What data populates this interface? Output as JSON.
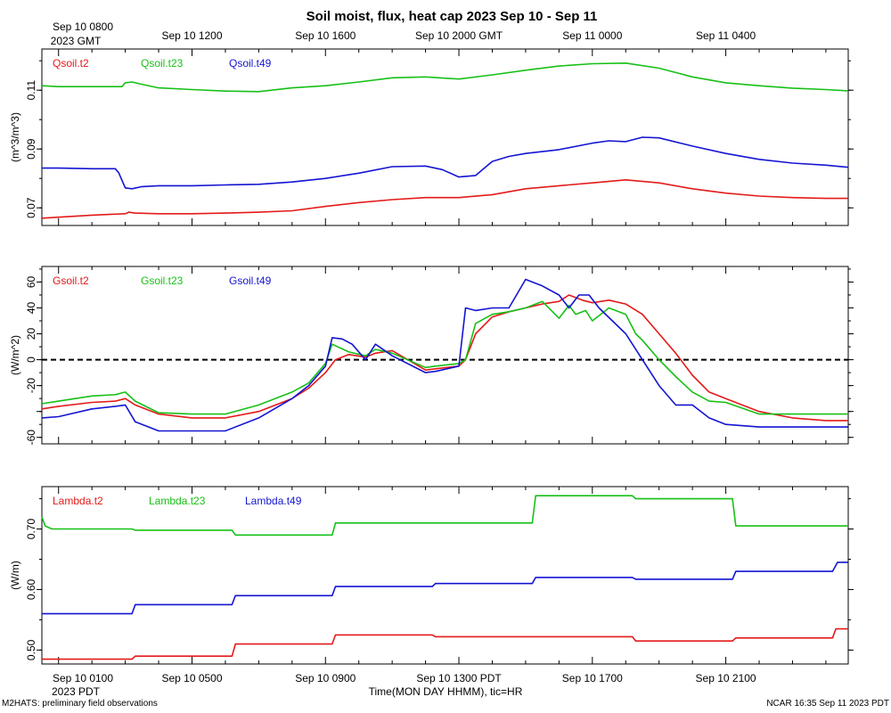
{
  "title": "Soil moist, flux, heat cap 2023 Sep 10 - Sep 11",
  "top_axis": {
    "first_label_line1": "Sep 10 0800",
    "first_label_line2": "2023 GMT",
    "labels": [
      "Sep 10 1200",
      "Sep 10 1600",
      "Sep 10 2000 GMT",
      "Sep 11 0000",
      "Sep 11 0400"
    ]
  },
  "bottom_axis": {
    "first_label_line1": "Sep 10 0100",
    "first_label_line2": "2023 PDT",
    "labels": [
      "Sep 10 0500",
      "Sep 10 0900",
      "Sep 10 1300 PDT",
      "Sep 10 1700",
      "Sep 10 2100"
    ],
    "xlabel": "Time(MON DAY HHMM), tic=HR"
  },
  "footer": {
    "left": "M2HATS: preliminary field observations",
    "right": "NCAR 16:35 Sep 11 2023 PDT"
  },
  "colors": {
    "red": "#e41a1a",
    "green": "#17c017",
    "blue": "#1414d2"
  },
  "chart_data": [
    {
      "type": "line",
      "ylabel": "(m^3/m^3)",
      "ylim": [
        0.064,
        0.124
      ],
      "yticks": [
        0.07,
        0.09,
        0.11
      ],
      "ytick_labels": [
        "0.07",
        "0.09",
        "0.11"
      ],
      "xlim_hours_pdt": [
        0.5,
        24.67
      ],
      "series": [
        {
          "name": "Qsoil.t2",
          "color": "red",
          "x": [
            0.5,
            2,
            3,
            3.1,
            3.3,
            4,
            5,
            6,
            7,
            8,
            9,
            10,
            11,
            12,
            13,
            14,
            15,
            16,
            17,
            18,
            19,
            20,
            21,
            22,
            23,
            24,
            24.67
          ],
          "y": [
            0.0665,
            0.0675,
            0.068,
            0.0685,
            0.0682,
            0.068,
            0.068,
            0.0682,
            0.0685,
            0.069,
            0.0705,
            0.0718,
            0.0728,
            0.0735,
            0.0735,
            0.0745,
            0.0765,
            0.0775,
            0.0785,
            0.0795,
            0.0785,
            0.0765,
            0.075,
            0.074,
            0.0735,
            0.0732,
            0.0732
          ]
        },
        {
          "name": "Qsoil.t23",
          "color": "green",
          "x": [
            0.5,
            1,
            2,
            2.9,
            3,
            3.2,
            3.5,
            4,
            5,
            6,
            7,
            8,
            9,
            10,
            11,
            12,
            13,
            14,
            15,
            16,
            17,
            18,
            19,
            20,
            21,
            22,
            23,
            24,
            24.67
          ],
          "y": [
            0.1115,
            0.1112,
            0.1112,
            0.1112,
            0.1125,
            0.1128,
            0.112,
            0.1108,
            0.1102,
            0.1097,
            0.1095,
            0.1108,
            0.1115,
            0.1128,
            0.1142,
            0.1145,
            0.1138,
            0.1152,
            0.1168,
            0.1182,
            0.119,
            0.1192,
            0.1175,
            0.1145,
            0.1125,
            0.1115,
            0.1107,
            0.1102,
            0.1098
          ]
        },
        {
          "name": "Qsoil.t49",
          "color": "blue",
          "x": [
            0.5,
            1,
            2,
            2.7,
            2.8,
            3,
            3.2,
            3.5,
            4,
            5,
            6,
            7,
            8,
            9,
            10,
            11,
            12,
            12.5,
            13,
            13.5,
            14,
            14.5,
            15,
            16,
            17,
            17.5,
            18,
            18.5,
            19,
            20,
            21,
            22,
            23,
            24,
            24.67
          ],
          "y": [
            0.0835,
            0.0835,
            0.0833,
            0.0833,
            0.082,
            0.0768,
            0.0765,
            0.0772,
            0.0775,
            0.0775,
            0.0778,
            0.078,
            0.0788,
            0.08,
            0.0818,
            0.084,
            0.0842,
            0.083,
            0.0805,
            0.081,
            0.0858,
            0.0875,
            0.0885,
            0.0898,
            0.092,
            0.0928,
            0.0925,
            0.094,
            0.0938,
            0.091,
            0.0885,
            0.0865,
            0.0852,
            0.0845,
            0.0838
          ]
        }
      ]
    },
    {
      "type": "line",
      "ylabel": "(W/m^2)",
      "ylim": [
        -65,
        72
      ],
      "yticks": [
        -60,
        -40,
        -20,
        0,
        20,
        40,
        60
      ],
      "ytick_labels": [
        "-60",
        "",
        "-20",
        "0",
        "20",
        "40",
        "60"
      ],
      "zero_line": "dashed",
      "xlim_hours_pdt": [
        0.5,
        24.67
      ],
      "series": [
        {
          "name": "Gsoil.t2",
          "color": "red",
          "x": [
            0.5,
            1,
            2,
            2.7,
            3,
            3.3,
            4,
            5,
            6,
            7,
            8,
            8.5,
            9,
            9.3,
            9.7,
            10.2,
            10.5,
            11,
            12,
            12.3,
            13,
            13.2,
            13.5,
            14,
            14.5,
            15,
            15.5,
            16,
            16.3,
            16.7,
            17,
            17.5,
            18,
            18.5,
            19,
            19.5,
            20,
            20.5,
            21,
            22,
            23,
            24,
            24.67
          ],
          "y": [
            -38,
            -36,
            -33,
            -32,
            -30,
            -35,
            -42,
            -45,
            -45,
            -40,
            -30,
            -22,
            -10,
            0,
            4,
            2,
            5,
            7,
            -8,
            -7,
            -5,
            0,
            20,
            33,
            37,
            40,
            43,
            45,
            50,
            46,
            44,
            46,
            43,
            35,
            20,
            5,
            -12,
            -25,
            -30,
            -40,
            -45,
            -47,
            -47
          ]
        },
        {
          "name": "Gsoil.t23",
          "color": "green",
          "x": [
            0.5,
            1,
            2,
            2.7,
            3,
            3.3,
            4,
            5,
            6,
            7,
            8,
            8.5,
            9,
            9.2,
            9.7,
            10.2,
            10.5,
            11,
            12,
            12.3,
            13,
            13.2,
            13.5,
            14,
            14.5,
            15,
            15.5,
            16,
            16.3,
            16.5,
            16.8,
            17,
            17.5,
            18,
            18.3,
            18.5,
            19,
            19.5,
            20,
            20.5,
            21,
            22,
            23,
            24,
            24.67
          ],
          "y": [
            -34,
            -32,
            -28,
            -27,
            -25,
            -32,
            -41,
            -42,
            -42,
            -35,
            -25,
            -18,
            -3,
            12,
            6,
            3,
            8,
            5,
            -6,
            -5,
            -3,
            0,
            28,
            35,
            37,
            40,
            45,
            32,
            42,
            35,
            38,
            30,
            40,
            35,
            20,
            15,
            0,
            -13,
            -25,
            -32,
            -33,
            -42,
            -42,
            -42,
            -42
          ]
        },
        {
          "name": "Gsoil.t49",
          "color": "blue",
          "x": [
            0.5,
            1,
            2,
            2.7,
            3,
            3.3,
            4,
            5,
            6,
            7,
            8,
            8.5,
            9,
            9.2,
            9.5,
            9.8,
            10.2,
            10.5,
            11,
            12,
            12.3,
            13,
            13.2,
            13.5,
            14,
            14.5,
            15,
            15.5,
            16,
            16.3,
            16.6,
            16.9,
            17.2,
            17.6,
            18,
            18.5,
            19,
            19.5,
            20,
            20.5,
            21,
            22,
            23,
            24,
            24.67
          ],
          "y": [
            -45,
            -44,
            -38,
            -36,
            -35,
            -48,
            -55,
            -55,
            -55,
            -45,
            -30,
            -20,
            -5,
            17,
            16,
            12,
            0,
            12,
            3,
            -10,
            -9,
            -5,
            40,
            38,
            40,
            40,
            62,
            57,
            50,
            40,
            50,
            50,
            40,
            30,
            20,
            0,
            -20,
            -35,
            -35,
            -45,
            -50,
            -52,
            -52,
            -52,
            -52
          ]
        }
      ]
    },
    {
      "type": "line",
      "ylabel": "(W/m)",
      "ylim": [
        0.477,
        0.77
      ],
      "yticks": [
        0.5,
        0.6,
        0.7
      ],
      "ytick_labels": [
        "0.50",
        "0.60",
        "0.70"
      ],
      "xlim_hours_pdt": [
        0.5,
        24.67
      ],
      "series": [
        {
          "name": "Lambda.t2",
          "color": "red",
          "x": [
            0.5,
            3.2,
            3.3,
            6.2,
            6.3,
            9.2,
            9.3,
            12.2,
            12.3,
            18.2,
            18.3,
            21.2,
            21.3,
            24.2,
            24.3,
            24.67
          ],
          "y": [
            0.485,
            0.485,
            0.49,
            0.49,
            0.51,
            0.51,
            0.525,
            0.525,
            0.522,
            0.522,
            0.515,
            0.515,
            0.52,
            0.52,
            0.535,
            0.535
          ]
        },
        {
          "name": "Lambda.t23",
          "color": "green",
          "x": [
            0.5,
            0.6,
            0.8,
            3.2,
            3.3,
            6.2,
            6.3,
            9.2,
            9.3,
            15.2,
            15.3,
            18.2,
            18.3,
            21.2,
            21.3,
            24.67
          ],
          "y": [
            0.72,
            0.705,
            0.7,
            0.7,
            0.698,
            0.698,
            0.69,
            0.69,
            0.71,
            0.71,
            0.755,
            0.755,
            0.75,
            0.75,
            0.705,
            0.705
          ]
        },
        {
          "name": "Lambda.t49",
          "color": "blue",
          "x": [
            0.5,
            3.2,
            3.3,
            6.2,
            6.3,
            9.2,
            9.3,
            12.2,
            12.3,
            15.2,
            15.3,
            18.2,
            18.3,
            21.2,
            21.3,
            24.2,
            24.35,
            24.67
          ],
          "y": [
            0.56,
            0.56,
            0.575,
            0.575,
            0.59,
            0.59,
            0.605,
            0.605,
            0.61,
            0.61,
            0.62,
            0.62,
            0.617,
            0.617,
            0.63,
            0.63,
            0.645,
            0.645
          ]
        }
      ]
    }
  ]
}
